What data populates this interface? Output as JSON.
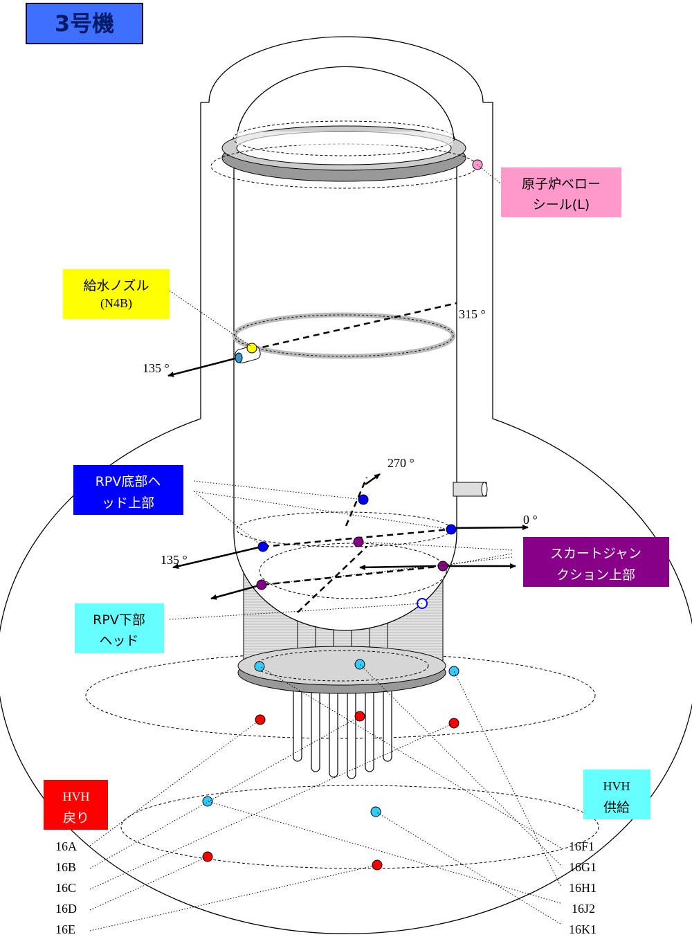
{
  "title": "3号機",
  "callouts": {
    "bellows_seal": [
      "原子炉ベロー",
      "シール(L)"
    ],
    "feedwater_nozzle": [
      "給水ノズル",
      "(N4B)"
    ],
    "bottom_head_upper": [
      "RPV底部ヘ",
      "ッド上部"
    ],
    "skirt_junction_upper": [
      "スカートジャン",
      "クション上部"
    ],
    "lower_head": [
      "RPV下部",
      "ヘッド"
    ]
  },
  "angles": [
    "315 °",
    "135 °",
    "270 °",
    "0 °",
    "135 °"
  ],
  "hvh_return": {
    "label": [
      "HVH",
      "戻り"
    ],
    "points": [
      "16A",
      "16B",
      "16C",
      "16D",
      "16E"
    ]
  },
  "hvh_supply": {
    "label": [
      "HVH",
      "供給"
    ],
    "points": [
      "16F1",
      "16G1",
      "16H1",
      "16J2",
      "16K1"
    ]
  }
}
